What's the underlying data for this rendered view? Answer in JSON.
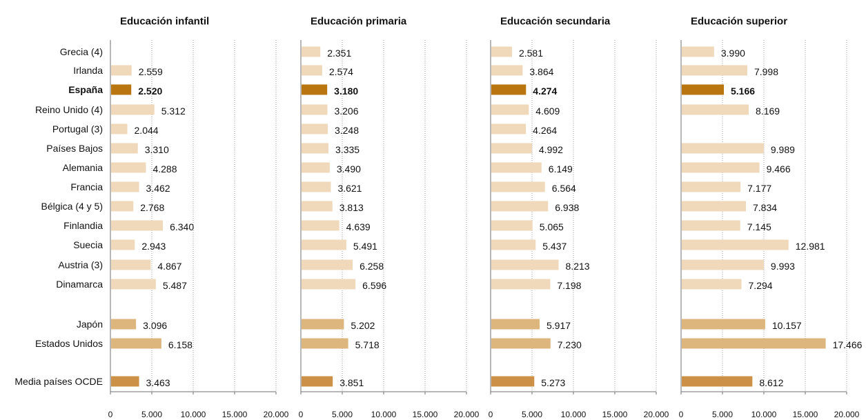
{
  "chart_data": {
    "type": "bar",
    "orientation": "horizontal",
    "panels": [
      "Educación infantil",
      "Educación primaria",
      "Educación secundaria",
      "Educación superior"
    ],
    "categories": [
      "Grecia (4)",
      "Irlanda",
      "España",
      "Reino Unido (4)",
      "Portugal (3)",
      "Países Bajos",
      "Alemania",
      "Francia",
      "Bélgica (4 y 5)",
      "Finlandia",
      "Suecia",
      "Austria (3)",
      "Dinamarca",
      "Japón",
      "Estados Unidos",
      "Media países OCDE"
    ],
    "highlight_category": "España",
    "series": [
      {
        "values": [
          null,
          2559,
          2520,
          5312,
          2044,
          3310,
          4288,
          3462,
          2768,
          6340,
          2943,
          4867,
          5487,
          3096,
          6158,
          3463
        ],
        "labels": [
          "",
          "2.559",
          "2.520",
          "5.312",
          "2.044",
          "3.310",
          "4.288",
          "3.462",
          "2.768",
          "6.340",
          "2.943",
          "4.867",
          "5.487",
          "3.096",
          "6.158",
          "3.463"
        ]
      },
      {
        "values": [
          2351,
          2574,
          3180,
          3206,
          3248,
          3335,
          3490,
          3621,
          3813,
          4639,
          5491,
          6258,
          6596,
          5202,
          5718,
          3851
        ],
        "labels": [
          "2.351",
          "2.574",
          "3.180",
          "3.206",
          "3.248",
          "3.335",
          "3.490",
          "3.621",
          "3.813",
          "4.639",
          "5.491",
          "6.258",
          "6.596",
          "5.202",
          "5.718",
          "3.851"
        ]
      },
      {
        "values": [
          2581,
          3864,
          4274,
          4609,
          4264,
          4992,
          6149,
          6564,
          6938,
          5065,
          5437,
          8213,
          7198,
          5917,
          7230,
          5273
        ],
        "labels": [
          "2.581",
          "3.864",
          "4.274",
          "4.609",
          "4.264",
          "4.992",
          "6.149",
          "6.564",
          "6.938",
          "5.065",
          "5.437",
          "8.213",
          "7.198",
          "5.917",
          "7.230",
          "5.273"
        ]
      },
      {
        "values": [
          3990,
          7998,
          5166,
          8169,
          null,
          9989,
          9466,
          7177,
          7834,
          7145,
          12981,
          9993,
          7294,
          10157,
          17466,
          8612
        ],
        "labels": [
          "3.990",
          "7.998",
          "5.166",
          "8.169",
          "",
          "9.989",
          "9.466",
          "7.177",
          "7.834",
          "7.145",
          "12.981",
          "9.993",
          "7.294",
          "10.157",
          "17.466",
          "8.612"
        ]
      }
    ],
    "xlim": [
      0,
      20000
    ],
    "xticks": [
      0,
      5000,
      10000,
      15000,
      20000
    ],
    "xtick_labels": [
      "0",
      "5.000",
      "10.000",
      "15.000",
      "20.000"
    ],
    "grid": "vertical dotted",
    "colors": {
      "europe": "#f0d9bb",
      "highlight": "#b87510",
      "other": "#ddb67e",
      "average": "#cc9046"
    }
  }
}
